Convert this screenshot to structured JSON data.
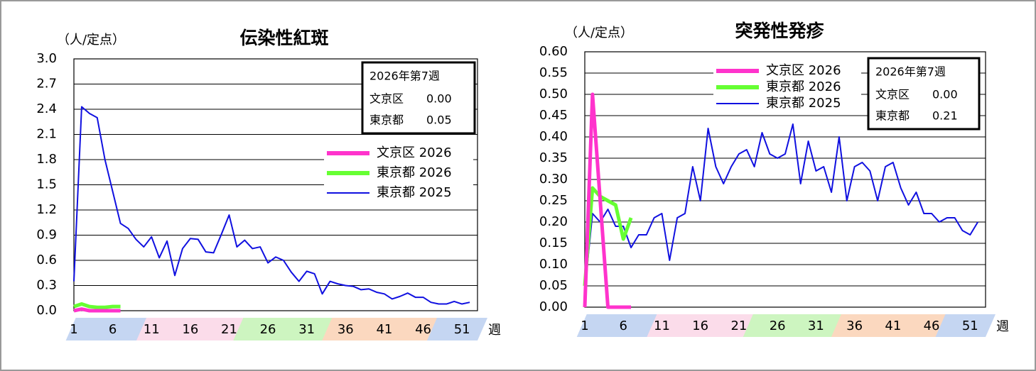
{
  "chart_data": [
    {
      "type": "line",
      "title": "伝染性紅斑",
      "y_label": "（人/定点）",
      "x_label": "週",
      "x": [
        1,
        2,
        3,
        4,
        5,
        6,
        7,
        8,
        9,
        10,
        11,
        12,
        13,
        14,
        15,
        16,
        17,
        18,
        19,
        20,
        21,
        22,
        23,
        24,
        25,
        26,
        27,
        28,
        29,
        30,
        31,
        32,
        33,
        34,
        35,
        36,
        37,
        38,
        39,
        40,
        41,
        42,
        43,
        44,
        45,
        46,
        47,
        48,
        49,
        50,
        51,
        52
      ],
      "xlim": [
        1,
        53
      ],
      "xticks": [
        1,
        6,
        11,
        16,
        21,
        26,
        31,
        36,
        41,
        46,
        51
      ],
      "ylim": [
        0,
        3
      ],
      "yticks": [
        {
          "value": 0,
          "label": "0.0"
        },
        0.3,
        0.6,
        0.9,
        1.2,
        1.5,
        1.8,
        2.1,
        2.4,
        2.7,
        {
          "value": 3,
          "label": "3.0"
        }
      ],
      "grid": true,
      "series": [
        {
          "name": "文京区 2026",
          "color": "#ff33cc",
          "values": [
            0,
            0.02,
            0,
            0,
            0,
            0,
            0,
            null,
            null,
            null,
            null,
            null,
            null,
            null,
            null,
            null,
            null,
            null,
            null,
            null,
            null,
            null,
            null,
            null,
            null,
            null,
            null,
            null,
            null,
            null,
            null,
            null,
            null,
            null,
            null,
            null,
            null,
            null,
            null,
            null,
            null,
            null,
            null,
            null,
            null,
            null,
            null,
            null,
            null,
            null,
            null,
            null
          ]
        },
        {
          "name": "東京都 2026",
          "color": "#66ff33",
          "values": [
            0.05,
            0.08,
            0.05,
            0.04,
            0.04,
            0.05,
            0.05,
            null,
            null,
            null,
            null,
            null,
            null,
            null,
            null,
            null,
            null,
            null,
            null,
            null,
            null,
            null,
            null,
            null,
            null,
            null,
            null,
            null,
            null,
            null,
            null,
            null,
            null,
            null,
            null,
            null,
            null,
            null,
            null,
            null,
            null,
            null,
            null,
            null,
            null,
            null,
            null,
            null,
            null,
            null,
            null,
            null
          ]
        },
        {
          "name": "東京都 2025",
          "color": "#1010e0",
          "values": [
            0.35,
            2.43,
            2.35,
            2.3,
            1.8,
            1.42,
            1.04,
            0.98,
            0.85,
            0.76,
            0.88,
            0.63,
            0.83,
            0.42,
            0.74,
            0.86,
            0.85,
            0.7,
            0.69,
            0.91,
            1.14,
            0.76,
            0.84,
            0.74,
            0.76,
            0.57,
            0.64,
            0.6,
            0.46,
            0.35,
            0.47,
            0.44,
            0.2,
            0.35,
            0.32,
            0.3,
            0.29,
            0.25,
            0.26,
            0.22,
            0.2,
            0.14,
            0.17,
            0.21,
            0.16,
            0.16,
            0.1,
            0.08,
            0.08,
            0.11,
            0.08,
            0.1
          ]
        }
      ],
      "info_box": {
        "title": "2026年第7週",
        "rows": [
          [
            "文京区",
            "0.00"
          ],
          [
            "東京都",
            "0.05"
          ]
        ]
      }
    },
    {
      "type": "line",
      "title": "突発性発疹",
      "y_label": "（人/定点）",
      "x_label": "週",
      "x": [
        1,
        2,
        3,
        4,
        5,
        6,
        7,
        8,
        9,
        10,
        11,
        12,
        13,
        14,
        15,
        16,
        17,
        18,
        19,
        20,
        21,
        22,
        23,
        24,
        25,
        26,
        27,
        28,
        29,
        30,
        31,
        32,
        33,
        34,
        35,
        36,
        37,
        38,
        39,
        40,
        41,
        42,
        43,
        44,
        45,
        46,
        47,
        48,
        49,
        50,
        51,
        52
      ],
      "xlim": [
        1,
        53
      ],
      "xticks": [
        1,
        6,
        11,
        16,
        21,
        26,
        31,
        36,
        41,
        46,
        51
      ],
      "ylim": [
        0,
        0.6
      ],
      "yticks": [
        {
          "value": 0,
          "label": "0.00"
        },
        {
          "value": 0.05,
          "label": "0.05"
        },
        {
          "value": 0.1,
          "label": "0.10"
        },
        {
          "value": 0.15,
          "label": "0.15"
        },
        {
          "value": 0.2,
          "label": "0.20"
        },
        {
          "value": 0.25,
          "label": "0.25"
        },
        {
          "value": 0.3,
          "label": "0.30"
        },
        {
          "value": 0.35,
          "label": "0.35"
        },
        {
          "value": 0.4,
          "label": "0.40"
        },
        {
          "value": 0.45,
          "label": "0.45"
        },
        {
          "value": 0.5,
          "label": "0.50"
        },
        {
          "value": 0.55,
          "label": "0.55"
        },
        {
          "value": 0.6,
          "label": "0.60"
        }
      ],
      "grid": true,
      "series": [
        {
          "name": "文京区 2026",
          "color": "#ff33cc",
          "values": [
            0,
            0.5,
            0.25,
            0,
            0,
            0,
            0,
            null,
            null,
            null,
            null,
            null,
            null,
            null,
            null,
            null,
            null,
            null,
            null,
            null,
            null,
            null,
            null,
            null,
            null,
            null,
            null,
            null,
            null,
            null,
            null,
            null,
            null,
            null,
            null,
            null,
            null,
            null,
            null,
            null,
            null,
            null,
            null,
            null,
            null,
            null,
            null,
            null,
            null,
            null,
            null,
            null
          ]
        },
        {
          "name": "東京都 2026",
          "color": "#66ff33",
          "values": [
            0.05,
            0.28,
            0.26,
            0.25,
            0.24,
            0.16,
            0.21,
            null,
            null,
            null,
            null,
            null,
            null,
            null,
            null,
            null,
            null,
            null,
            null,
            null,
            null,
            null,
            null,
            null,
            null,
            null,
            null,
            null,
            null,
            null,
            null,
            null,
            null,
            null,
            null,
            null,
            null,
            null,
            null,
            null,
            null,
            null,
            null,
            null,
            null,
            null,
            null,
            null,
            null,
            null,
            null,
            null
          ]
        },
        {
          "name": "東京都 2025",
          "color": "#1010e0",
          "values": [
            0.04,
            0.22,
            0.2,
            0.23,
            0.19,
            0.19,
            0.14,
            0.17,
            0.17,
            0.21,
            0.22,
            0.11,
            0.21,
            0.22,
            0.33,
            0.25,
            0.42,
            0.33,
            0.29,
            0.33,
            0.36,
            0.37,
            0.33,
            0.41,
            0.36,
            0.35,
            0.36,
            0.43,
            0.29,
            0.39,
            0.32,
            0.33,
            0.27,
            0.4,
            0.25,
            0.33,
            0.34,
            0.32,
            0.25,
            0.33,
            0.34,
            0.28,
            0.24,
            0.27,
            0.22,
            0.22,
            0.2,
            0.21,
            0.21,
            0.18,
            0.17,
            0.2
          ]
        }
      ],
      "info_box": {
        "title": "2026年第7週",
        "rows": [
          [
            "文京区",
            "0.00"
          ],
          [
            "東京都",
            "0.21"
          ]
        ]
      }
    }
  ]
}
